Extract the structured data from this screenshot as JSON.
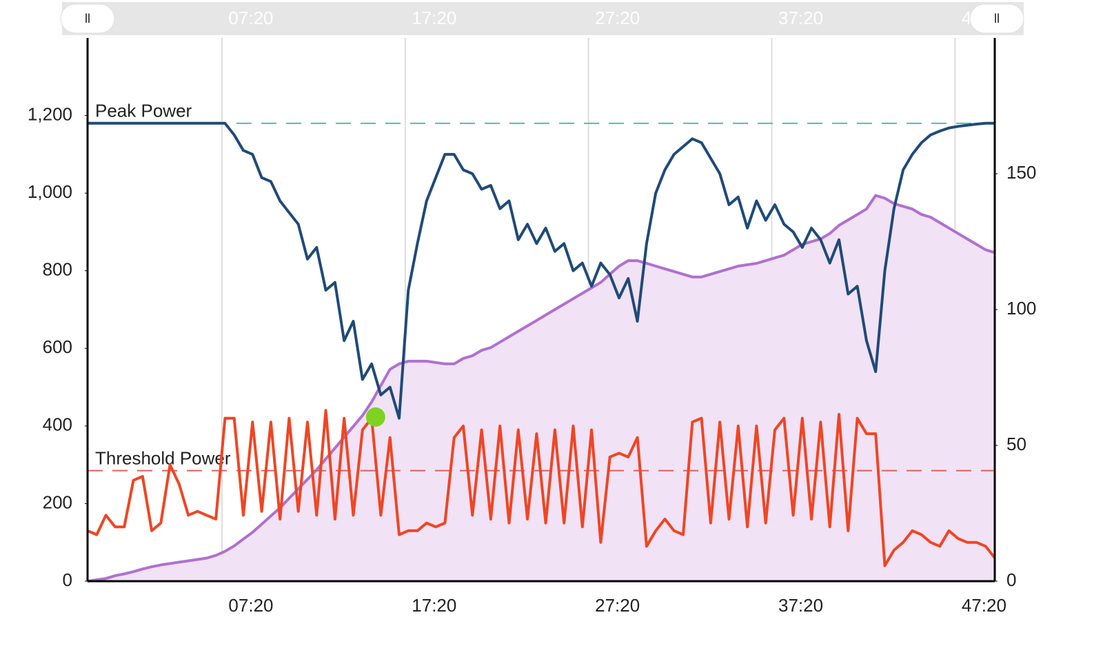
{
  "chart_data": {
    "type": "line",
    "x": [
      0,
      30,
      60,
      90,
      120,
      150,
      180,
      210,
      240,
      270,
      300,
      330,
      360,
      390,
      420,
      450,
      480,
      510,
      540,
      570,
      600,
      630,
      660,
      690,
      720,
      750,
      780,
      810,
      840,
      870,
      900,
      930,
      960,
      990,
      1020,
      1050,
      1080,
      1110,
      1140,
      1170,
      1200,
      1230,
      1260,
      1290,
      1320,
      1350,
      1380,
      1410,
      1440,
      1470,
      1500,
      1530,
      1560,
      1590,
      1620,
      1650,
      1680,
      1710,
      1740,
      1770,
      1800,
      1830,
      1860,
      1890,
      1920,
      1950,
      1980,
      2010,
      2040,
      2070,
      2100,
      2130,
      2160,
      2190,
      2220,
      2250,
      2280,
      2310,
      2340,
      2370,
      2400,
      2430,
      2460,
      2490,
      2520,
      2550,
      2580,
      2610,
      2640,
      2670,
      2700,
      2730,
      2760,
      2790,
      2820,
      2850,
      2880,
      2910,
      2940,
      2970
    ],
    "xlim": [
      0,
      2970
    ],
    "xticks": [
      {
        "value": 440,
        "label": "07:20"
      },
      {
        "value": 1040,
        "label": "17:20"
      },
      {
        "value": 1640,
        "label": "27:20"
      },
      {
        "value": 2240,
        "label": "37:20"
      },
      {
        "value": 2840,
        "label": "47:20"
      }
    ],
    "ylim": [
      0,
      1400
    ],
    "yticks": [
      0,
      200,
      400,
      600,
      800,
      {
        "value": 1000,
        "label": "1,000"
      },
      {
        "value": 1200,
        "label": "1,200"
      }
    ],
    "y2lim": [
      0,
      200
    ],
    "y2ticks": [
      0,
      50,
      100,
      150
    ],
    "grid": true,
    "series": [
      {
        "color": "#b070d0",
        "fill": "#f1e2f5",
        "axis": "y2",
        "values": [
          0,
          0.5,
          1,
          2,
          2.7,
          3.5,
          4.5,
          5.3,
          6,
          6.5,
          7,
          7.5,
          8,
          8.5,
          9.5,
          11,
          13,
          15.5,
          18,
          21,
          24,
          27,
          30.5,
          34,
          37.5,
          41,
          45,
          49,
          53,
          57,
          61,
          66,
          72,
          78,
          80,
          81,
          81,
          81,
          80.5,
          80,
          80,
          82,
          83,
          85,
          86,
          88,
          90,
          92,
          94,
          96,
          98,
          100,
          102,
          104,
          106,
          108,
          110,
          113,
          116,
          118,
          118,
          117,
          116,
          115,
          114,
          113,
          112,
          112,
          113,
          114,
          115,
          116,
          116.5,
          117,
          118,
          119,
          120,
          122,
          124,
          125,
          126,
          128,
          131,
          133,
          135,
          137,
          142,
          141,
          139,
          138,
          137,
          135,
          134,
          132,
          130,
          128,
          126,
          124,
          122,
          121
        ]
      },
      {
        "color": "#f04523",
        "values": [
          130,
          120,
          170,
          140,
          140,
          260,
          270,
          130,
          150,
          300,
          250,
          170,
          180,
          170,
          160,
          420,
          420,
          170,
          410,
          180,
          410,
          160,
          420,
          180,
          410,
          170,
          440,
          160,
          420,
          170,
          390,
          420,
          170,
          370,
          120,
          130,
          130,
          150,
          140,
          150,
          370,
          400,
          170,
          390,
          160,
          400,
          150,
          390,
          160,
          380,
          150,
          390,
          150,
          400,
          140,
          390,
          100,
          320,
          330,
          320,
          370,
          90,
          130,
          160,
          130,
          120,
          410,
          420,
          150,
          410,
          160,
          400,
          140,
          400,
          150,
          390,
          420,
          170,
          420,
          160,
          410,
          140,
          430,
          130,
          420,
          380,
          380,
          40,
          80,
          100,
          130,
          120,
          100,
          90,
          130,
          110,
          100,
          100,
          90,
          60
        ]
      },
      {
        "color": "#1f4a78",
        "values": [
          1180,
          1180,
          1180,
          1180,
          1180,
          1180,
          1180,
          1180,
          1180,
          1180,
          1180,
          1180,
          1180,
          1180,
          1180,
          1180,
          1150,
          1110,
          1100,
          1040,
          1030,
          980,
          950,
          920,
          830,
          860,
          750,
          770,
          620,
          670,
          520,
          560,
          480,
          500,
          420,
          750,
          870,
          980,
          1040,
          1100,
          1100,
          1060,
          1050,
          1010,
          1020,
          960,
          980,
          880,
          920,
          870,
          910,
          850,
          870,
          800,
          820,
          760,
          820,
          790,
          730,
          780,
          670,
          870,
          1000,
          1060,
          1100,
          1120,
          1140,
          1130,
          1090,
          1050,
          970,
          990,
          910,
          980,
          930,
          970,
          920,
          900,
          860,
          910,
          880,
          820,
          880,
          740,
          760,
          620,
          540,
          800,
          960,
          1060,
          1100,
          1130,
          1150,
          1160,
          1168,
          1172,
          1175,
          1178,
          1180,
          1180
        ]
      }
    ],
    "reference_lines": [
      {
        "label": "Peak Power",
        "value": 1180,
        "color": "#4fbfb0"
      },
      {
        "label": "Threshold Power",
        "value": 285,
        "color": "#e06060"
      }
    ],
    "marker": {
      "x": 943,
      "value": 423,
      "color": "#7ed321"
    }
  }
}
